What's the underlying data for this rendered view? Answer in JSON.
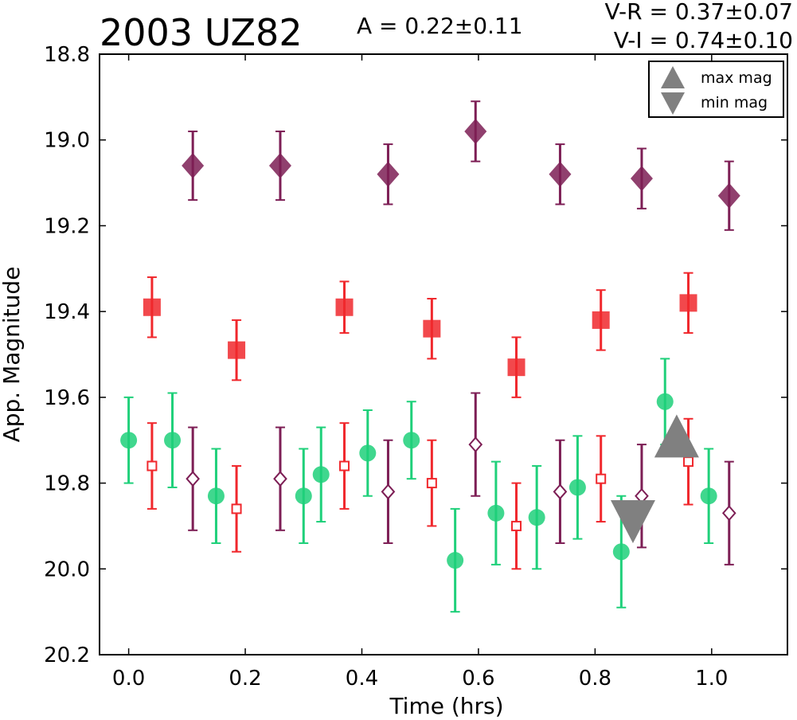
{
  "chart_data": {
    "type": "scatter",
    "title": "2003 UZ82",
    "amplitude_text": "A  = 0.22±0.11",
    "color_vr_text": "V-R = 0.37±0.07",
    "color_vi_text": "V-I  = 0.74±0.10",
    "xlabel": "Time (hrs)",
    "ylabel": "App. Magnitude",
    "xlim": [
      -0.05,
      1.13
    ],
    "ylim": [
      20.2,
      18.8
    ],
    "y_inverted": true,
    "grid": false,
    "x_ticks": [
      "0.0",
      "0.2",
      "0.4",
      "0.6",
      "0.8",
      "1.0"
    ],
    "y_ticks": [
      "18.8",
      "19.0",
      "19.2",
      "19.4",
      "19.6",
      "19.8",
      "20.0",
      "20.2"
    ],
    "legend": {
      "placement": "top-right",
      "entries": [
        {
          "label": "max mag",
          "marker": "triangle-up",
          "color": "#808080"
        },
        {
          "label": "min mag",
          "marker": "triangle-down",
          "color": "#808080"
        }
      ]
    },
    "series": [
      {
        "marker": "circle",
        "filled": true,
        "color": "#1fd07a",
        "points": [
          {
            "x": 0.0,
            "y": 19.7,
            "err": 0.1
          },
          {
            "x": 0.075,
            "y": 19.7,
            "err": 0.11
          },
          {
            "x": 0.15,
            "y": 19.83,
            "err": 0.11
          },
          {
            "x": 0.3,
            "y": 19.83,
            "err": 0.11
          },
          {
            "x": 0.33,
            "y": 19.78,
            "err": 0.11
          },
          {
            "x": 0.41,
            "y": 19.73,
            "err": 0.1
          },
          {
            "x": 0.485,
            "y": 19.7,
            "err": 0.09
          },
          {
            "x": 0.56,
            "y": 19.98,
            "err": 0.12
          },
          {
            "x": 0.63,
            "y": 19.87,
            "err": 0.12
          },
          {
            "x": 0.7,
            "y": 19.88,
            "err": 0.12
          },
          {
            "x": 0.77,
            "y": 19.81,
            "err": 0.12
          },
          {
            "x": 0.845,
            "y": 19.96,
            "err": 0.13
          },
          {
            "x": 0.92,
            "y": 19.61,
            "err": 0.1
          },
          {
            "x": 0.995,
            "y": 19.83,
            "err": 0.11
          }
        ]
      },
      {
        "marker": "square",
        "filled": true,
        "color": "#f0282d",
        "points": [
          {
            "x": 0.04,
            "y": 19.39,
            "err": 0.07
          },
          {
            "x": 0.185,
            "y": 19.49,
            "err": 0.07
          },
          {
            "x": 0.37,
            "y": 19.39,
            "err": 0.06
          },
          {
            "x": 0.52,
            "y": 19.44,
            "err": 0.07
          },
          {
            "x": 0.665,
            "y": 19.53,
            "err": 0.07
          },
          {
            "x": 0.81,
            "y": 19.42,
            "err": 0.07
          },
          {
            "x": 0.96,
            "y": 19.38,
            "err": 0.07
          }
        ]
      },
      {
        "marker": "square",
        "filled": false,
        "color": "#f0282d",
        "points": [
          {
            "x": 0.04,
            "y": 19.76,
            "err": 0.1
          },
          {
            "x": 0.185,
            "y": 19.86,
            "err": 0.1
          },
          {
            "x": 0.37,
            "y": 19.76,
            "err": 0.1
          },
          {
            "x": 0.52,
            "y": 19.8,
            "err": 0.1
          },
          {
            "x": 0.665,
            "y": 19.9,
            "err": 0.1
          },
          {
            "x": 0.81,
            "y": 19.79,
            "err": 0.1
          },
          {
            "x": 0.96,
            "y": 19.75,
            "err": 0.1
          }
        ]
      },
      {
        "marker": "diamond",
        "filled": true,
        "color": "#7d1e55",
        "points": [
          {
            "x": 0.11,
            "y": 19.06,
            "err": 0.08
          },
          {
            "x": 0.26,
            "y": 19.06,
            "err": 0.08
          },
          {
            "x": 0.445,
            "y": 19.08,
            "err": 0.07
          },
          {
            "x": 0.595,
            "y": 18.98,
            "err": 0.07
          },
          {
            "x": 0.74,
            "y": 19.08,
            "err": 0.07
          },
          {
            "x": 0.88,
            "y": 19.09,
            "err": 0.07
          },
          {
            "x": 1.03,
            "y": 19.13,
            "err": 0.08
          }
        ]
      },
      {
        "marker": "diamond",
        "filled": false,
        "color": "#7d1e55",
        "points": [
          {
            "x": 0.11,
            "y": 19.79,
            "err": 0.12
          },
          {
            "x": 0.26,
            "y": 19.79,
            "err": 0.12
          },
          {
            "x": 0.445,
            "y": 19.82,
            "err": 0.12
          },
          {
            "x": 0.595,
            "y": 19.71,
            "err": 0.12
          },
          {
            "x": 0.74,
            "y": 19.82,
            "err": 0.12
          },
          {
            "x": 0.88,
            "y": 19.83,
            "err": 0.12
          },
          {
            "x": 1.03,
            "y": 19.87,
            "err": 0.12
          }
        ]
      }
    ],
    "markers": [
      {
        "type": "max mag",
        "marker": "triangle-up",
        "x": 0.94,
        "y": 19.69,
        "color": "#808080"
      },
      {
        "type": "min mag",
        "marker": "triangle-down",
        "x": 0.865,
        "y": 19.89,
        "color": "#808080"
      }
    ]
  }
}
